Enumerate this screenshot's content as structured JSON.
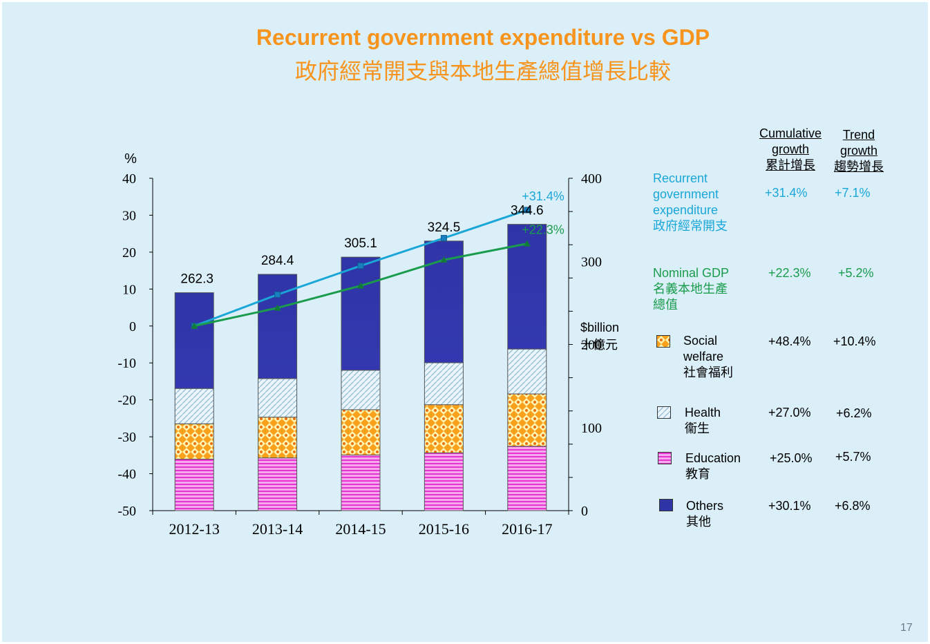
{
  "title": "Recurrent government expenditure vs GDP",
  "subtitle": "政府經常開支與本地生產總值增長比較",
  "chart_data": {
    "type": "bar",
    "categories": [
      "2012-13",
      "2013-14",
      "2014-15",
      "2015-16",
      "2016-17"
    ],
    "left_axis": {
      "unit": "%",
      "ylim": [
        -50,
        40
      ],
      "ticks": [
        "40",
        "30",
        "20",
        "10",
        "0",
        "-10",
        "-20",
        "-30",
        "-40",
        "-50"
      ]
    },
    "right_axis": {
      "unit": "$billion",
      "unit_cn": "十億元",
      "ylim": [
        0,
        400
      ],
      "ticks": [
        "400",
        "300",
        "200",
        "100",
        "0"
      ]
    },
    "lines": [
      {
        "name": "Recurrent government expenditure",
        "color": "#1aa7d8",
        "marker": "square",
        "values": [
          0,
          8.5,
          16.3,
          23.8,
          31.4
        ],
        "end_label": "+31.4%"
      },
      {
        "name": "Nominal GDP",
        "color": "#1a9c4c",
        "marker": "triangle",
        "values": [
          0,
          4.9,
          10.9,
          17.9,
          22.3
        ],
        "end_label": "+22.3%"
      }
    ],
    "totals": [
      "262.3",
      "284.4",
      "305.1",
      "324.5",
      "344.6"
    ],
    "stacks": [
      {
        "name": "Social welfare",
        "values": [
          42.5,
          49.0,
          54.5,
          58.0,
          63.0
        ]
      },
      {
        "name": "Health",
        "values": [
          42.5,
          46.5,
          47.5,
          50.5,
          54.0
        ]
      },
      {
        "name": "Education",
        "values": [
          62.0,
          63.5,
          67.0,
          69.5,
          77.5
        ]
      },
      {
        "name": "Others",
        "values": [
          115.3,
          125.4,
          136.1,
          146.5,
          150.1
        ]
      }
    ]
  },
  "legend": {
    "headers": [
      {
        "lines": [
          "Cumulative",
          "growth",
          "累計增長"
        ]
      },
      {
        "lines": [
          "Trend",
          "growth",
          "趨勢增長"
        ]
      }
    ],
    "items": [
      {
        "label_lines": [
          "Recurrent",
          "government",
          "expenditure",
          "政府經常開支"
        ],
        "color": "#1aa7d8",
        "cumulative": "+31.4%",
        "trend": "+7.1%"
      },
      {
        "label_lines": [
          "Nominal GDP",
          "名義本地生產",
          "總值"
        ],
        "color": "#1a9c4c",
        "cumulative": "+22.3%",
        "trend": "+5.2%"
      },
      {
        "label_lines": [
          "Social",
          "welfare",
          "社會福利"
        ],
        "color": "#000000",
        "cumulative": "+48.4%",
        "trend": "+10.4%",
        "swatch": "social-welfare"
      },
      {
        "label_lines": [
          "Health",
          "衞生"
        ],
        "color": "#000000",
        "cumulative": "+27.0%",
        "trend": "+6.2%",
        "swatch": "health"
      },
      {
        "label_lines": [
          "Education",
          "教育"
        ],
        "color": "#000000",
        "cumulative": "+25.0%",
        "trend": "+5.7%",
        "swatch": "education"
      },
      {
        "label_lines": [
          "Others",
          "其他"
        ],
        "color": "#000000",
        "cumulative": "+30.1%",
        "trend": "+6.8%",
        "swatch": "others"
      }
    ]
  },
  "page_number": "17"
}
